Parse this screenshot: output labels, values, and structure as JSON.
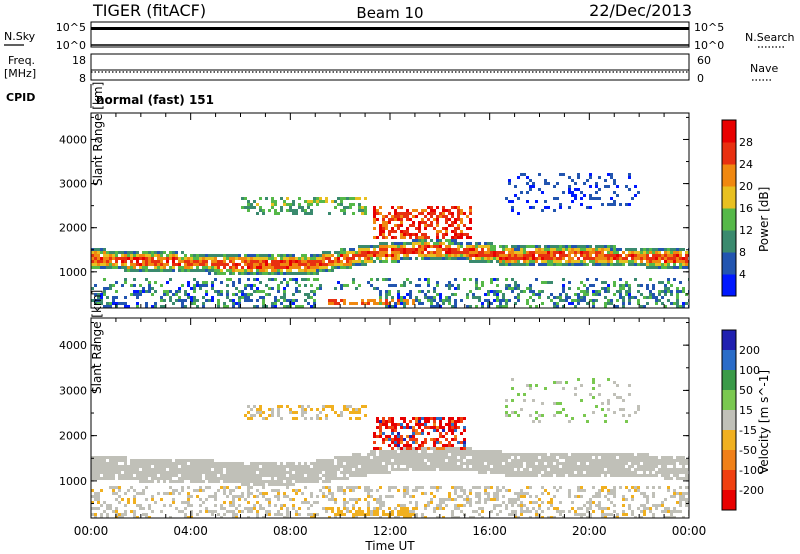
{
  "header": {
    "title": "TIGER (fitACF)",
    "beam": "Beam 10",
    "date": "22/Dec/2013"
  },
  "nsky_panel": {
    "label": "N.Sky",
    "left_ticks": [
      "10^5",
      "10^0"
    ],
    "right_ticks": [
      "10^5",
      "10^0"
    ],
    "right_label": "N.Search"
  },
  "freq_panel": {
    "label_line1": "Freq.",
    "label_line2": "[MHz]",
    "left_ticks": [
      "18",
      "8"
    ],
    "right_ticks": [
      "60",
      "0"
    ],
    "right_label": "Nave"
  },
  "cpid_panel": {
    "label": "CPID",
    "value": "normal (fast) 151"
  },
  "time_axis": {
    "label": "Time UT",
    "ticks": [
      "00:00",
      "04:00",
      "08:00",
      "12:00",
      "16:00",
      "20:00",
      "00:00"
    ]
  },
  "range_axis": {
    "label": "Slant Range [km]",
    "ticks": [
      "1000",
      "2000",
      "3000",
      "4000"
    ]
  },
  "power_colorbar": {
    "label": "Power [dB]",
    "ticks": [
      "4",
      "8",
      "12",
      "16",
      "20",
      "24",
      "28"
    ],
    "colors": [
      "#0018ff",
      "#2255b0",
      "#3a8a6e",
      "#55b848",
      "#e8c020",
      "#f08810",
      "#e83010",
      "#e80000"
    ]
  },
  "velocity_colorbar": {
    "label": "Velocity [m s^-1]",
    "ticks": [
      "200",
      "100",
      "50",
      "15",
      "-15",
      "-50",
      "-100",
      "-200"
    ],
    "colors": [
      "#2020b0",
      "#2a6cc8",
      "#3a9a48",
      "#7ac850",
      "#c0c0b8",
      "#f0b020",
      "#f08018",
      "#f04010",
      "#e80000"
    ]
  },
  "chart_data": [
    {
      "type": "heatmap",
      "title": "Power",
      "xlabel": "Time UT",
      "ylabel": "Slant Range [km]",
      "xlim": [
        0,
        24
      ],
      "ylim": [
        180,
        4600
      ],
      "zlabel": "Power [dB]",
      "zlim": [
        0,
        32
      ],
      "features": [
        {
          "t0": 0,
          "t1": 24,
          "range_center_start": 1300,
          "range_center_end": 1250,
          "width": 320,
          "power": 22
        },
        {
          "t0": 10,
          "t1": 16,
          "range": [
            1600,
            2400
          ],
          "power": 26
        },
        {
          "t0": 6,
          "t1": 11,
          "range": [
            2300,
            2700
          ],
          "power": 12
        },
        {
          "t0": 17,
          "t1": 22,
          "range": [
            2400,
            3300
          ],
          "power": 6
        },
        {
          "t0": 0,
          "t1": 24,
          "range": [
            200,
            900
          ],
          "power": 8
        }
      ]
    },
    {
      "type": "heatmap",
      "title": "Velocity",
      "xlabel": "Time UT",
      "ylabel": "Slant Range [km]",
      "xlim": [
        0,
        24
      ],
      "ylim": [
        180,
        4600
      ],
      "zlabel": "Velocity [m s^-1]",
      "zlim": [
        -200,
        200
      ],
      "features": [
        {
          "t0": 0,
          "t1": 24,
          "range": [
            600,
            1700
          ],
          "velocity": 0
        },
        {
          "t0": 11,
          "t1": 14,
          "range": [
            1700,
            2400
          ],
          "velocity": -200
        },
        {
          "t0": 9,
          "t1": 13,
          "range": [
            200,
            600
          ],
          "velocity": -60
        }
      ]
    }
  ]
}
